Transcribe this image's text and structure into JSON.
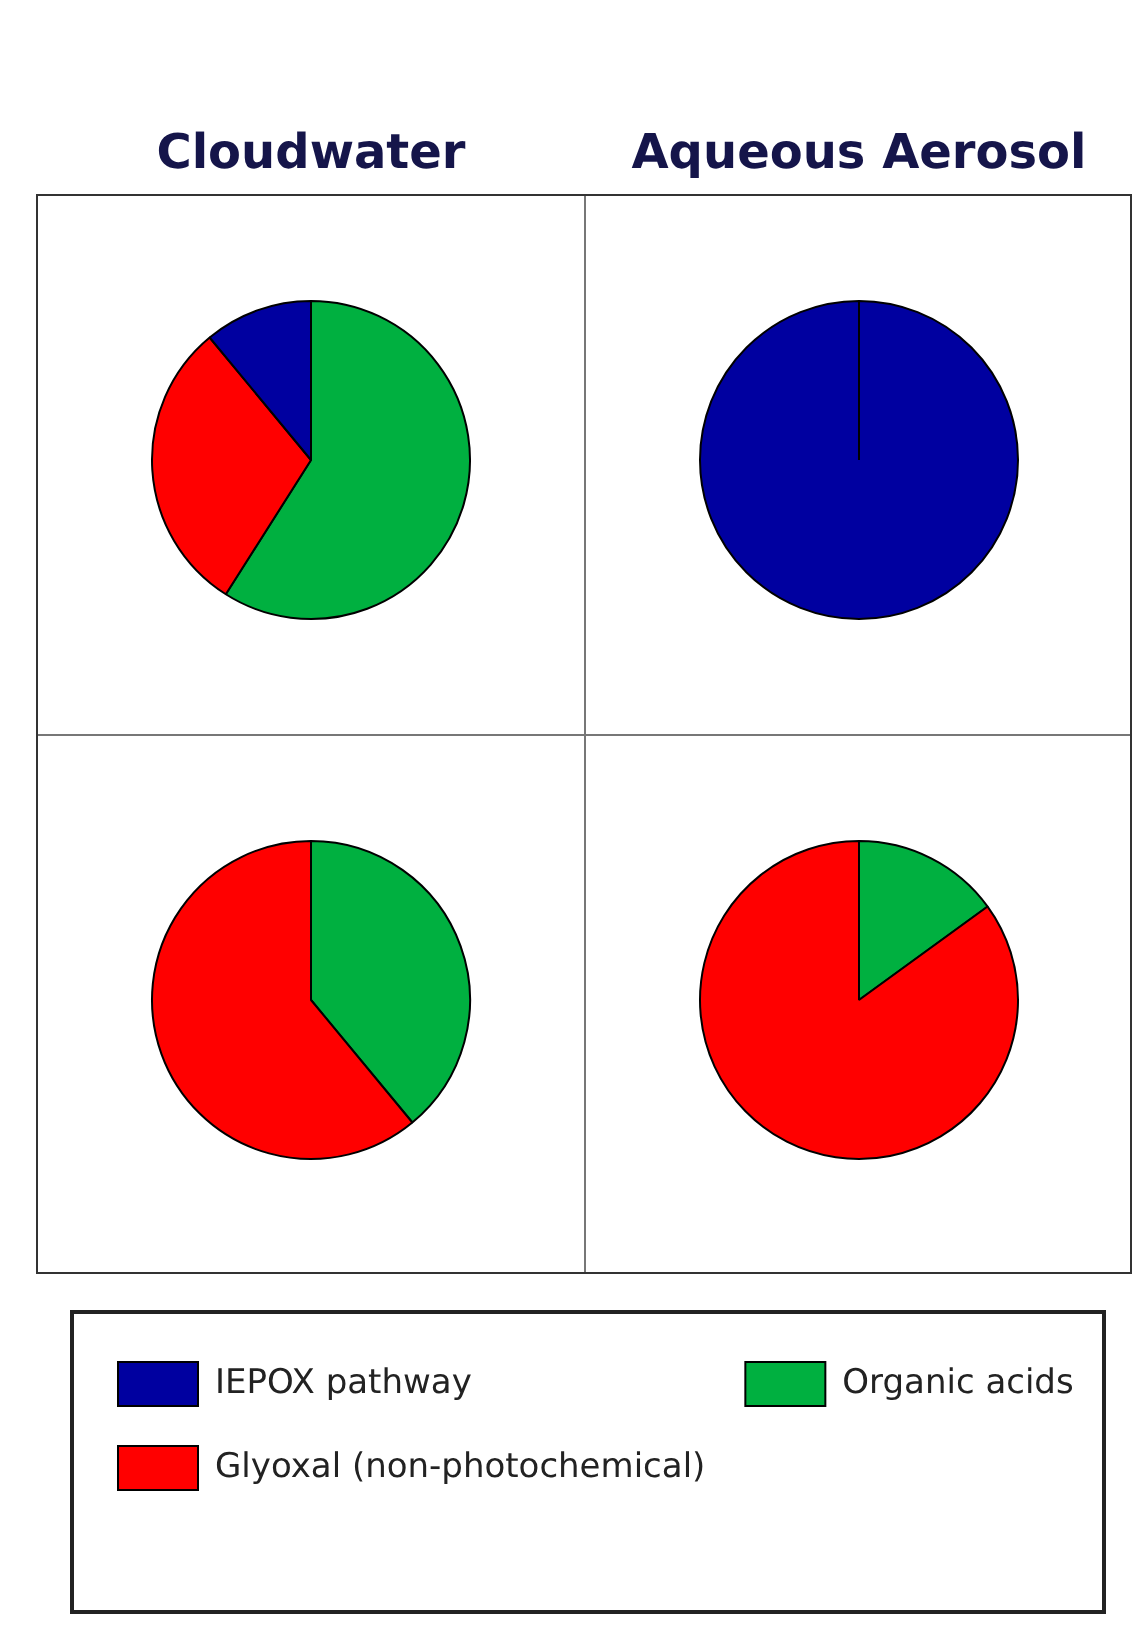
{
  "chart_data": {
    "type": "pie",
    "annotations": [
      "Cloudwater",
      "Aqueous Aerosol"
    ],
    "categories": [
      "IEPOX pathway",
      "Glyoxal (non-photochemical)",
      "Organic acids"
    ],
    "colors": [
      "#0000a0",
      "#ff0000",
      "#00b040"
    ],
    "series": [
      {
        "values": [
          11,
          30,
          59
        ]
      },
      {
        "values": [
          100,
          0,
          0
        ]
      },
      {
        "values": [
          0,
          61,
          39
        ]
      },
      {
        "values": [
          0,
          85,
          15
        ]
      }
    ],
    "legend": "bottom"
  }
}
